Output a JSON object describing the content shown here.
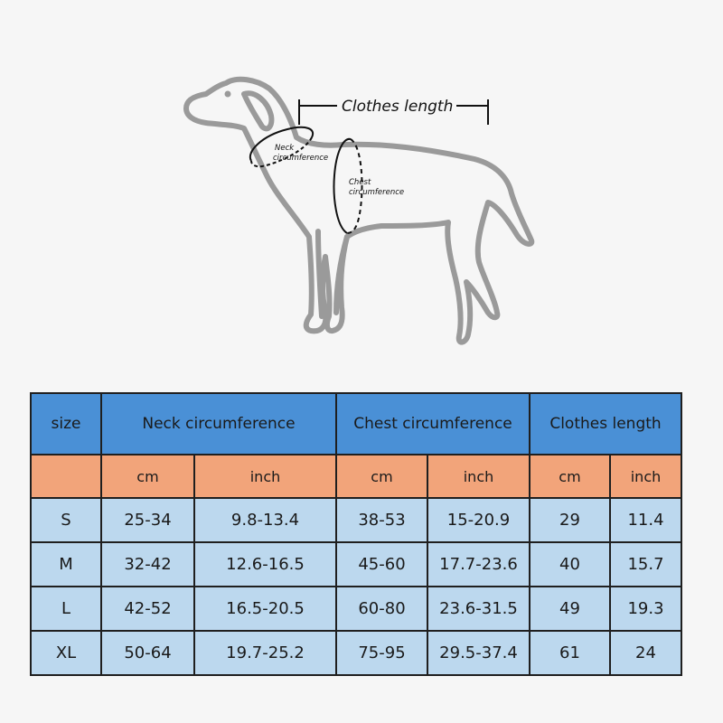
{
  "diagram": {
    "clothes_length_label": "Clothes length",
    "neck_label_line1": "Neck",
    "neck_label_line2": "circumference",
    "chest_label_line1": "Chest",
    "chest_label_line2": "circumference"
  },
  "table": {
    "size_header": "size",
    "groups": [
      "Neck circumference",
      "Chest circumference",
      "Clothes length"
    ],
    "units": [
      "cm",
      "inch",
      "cm",
      "inch",
      "cm",
      "inch"
    ],
    "rows": [
      {
        "size": "S",
        "neck_cm": "25-34",
        "neck_inch": "9.8-13.4",
        "chest_cm": "38-53",
        "chest_inch": "15-20.9",
        "length_cm": "29",
        "length_inch": "11.4"
      },
      {
        "size": "M",
        "neck_cm": "32-42",
        "neck_inch": "12.6-16.5",
        "chest_cm": "45-60",
        "chest_inch": "17.7-23.6",
        "length_cm": "40",
        "length_inch": "15.7"
      },
      {
        "size": "L",
        "neck_cm": "42-52",
        "neck_inch": "16.5-20.5",
        "chest_cm": "60-80",
        "chest_inch": "23.6-31.5",
        "length_cm": "49",
        "length_inch": "19.3"
      },
      {
        "size": "XL",
        "neck_cm": "50-64",
        "neck_inch": "19.7-25.2",
        "chest_cm": "75-95",
        "chest_inch": "29.5-37.4",
        "length_cm": "61",
        "length_inch": "24"
      }
    ]
  },
  "colors": {
    "header_blue": "#4a90d6",
    "unit_orange": "#f2a47a",
    "row_light_blue": "#bcd8ee",
    "outline_gray": "#9a9a9a"
  }
}
